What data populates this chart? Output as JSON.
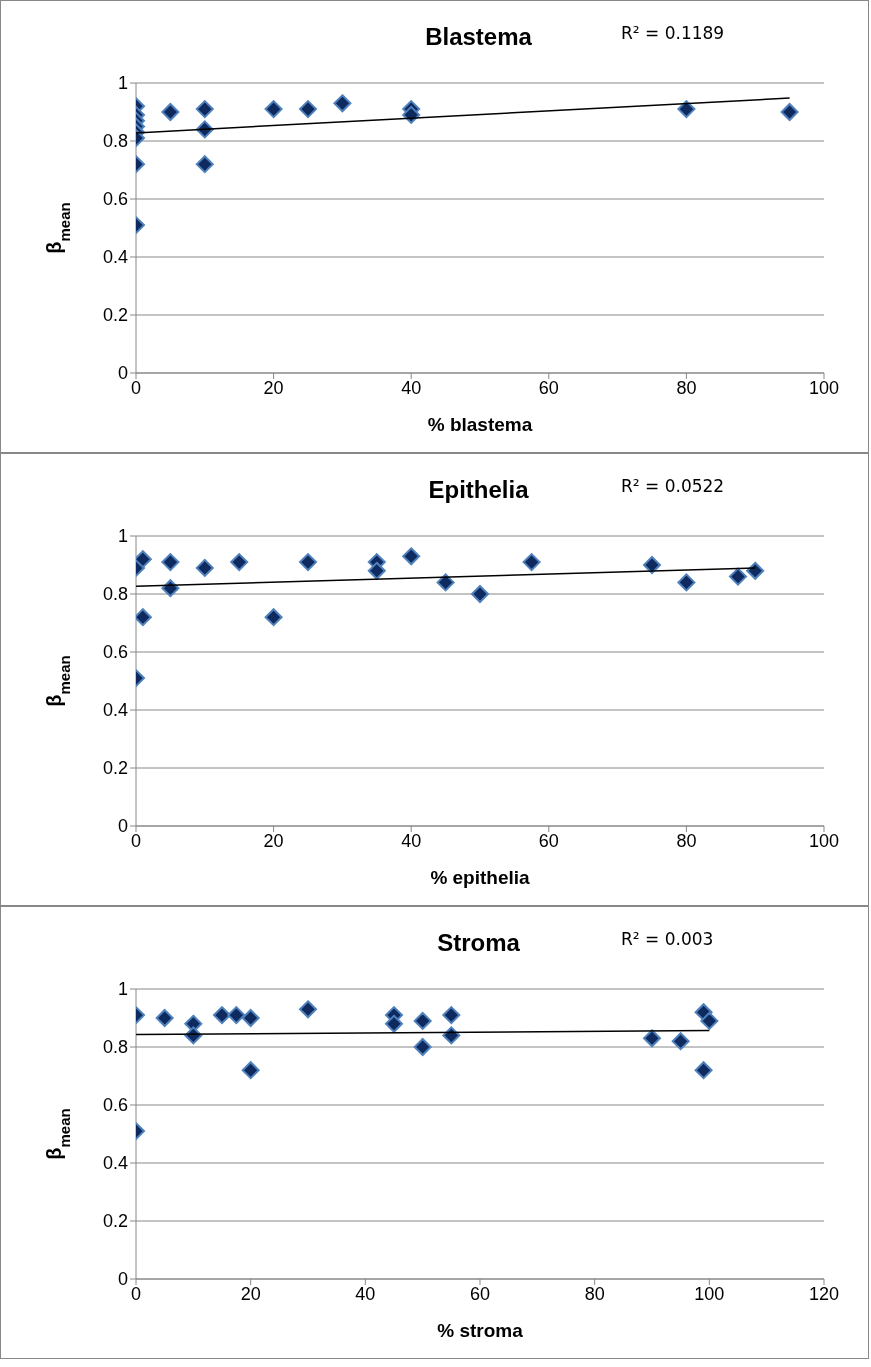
{
  "chart_data": [
    {
      "type": "scatter",
      "title": "Blastema",
      "xlabel": "% blastema",
      "ylabel": "β$_{mean}$",
      "annotations": [
        "R² = 0.1189"
      ],
      "xlim": [
        0,
        100
      ],
      "xticks": [
        0,
        20,
        40,
        60,
        80,
        100
      ],
      "ylim": [
        0,
        1
      ],
      "yticks": [
        0,
        0.2,
        0.4,
        0.6,
        0.8,
        1
      ],
      "grid": "y",
      "series": [
        {
          "type": "scatter",
          "marker": "diamond",
          "color": "#0f2a5e",
          "x": [
            0,
            0,
            0,
            0,
            0,
            0,
            0,
            0,
            5,
            10,
            10,
            10,
            20,
            25,
            30,
            40,
            40,
            80,
            95
          ],
          "values": [
            0.92,
            0.89,
            0.87,
            0.85,
            0.83,
            0.81,
            0.72,
            0.51,
            0.9,
            0.91,
            0.84,
            0.72,
            0.91,
            0.91,
            0.93,
            0.91,
            0.89,
            0.91,
            0.9
          ]
        },
        {
          "type": "line",
          "color": "#000000",
          "line_style": "solid",
          "x": [
            0,
            95
          ],
          "values": [
            0.828,
            0.948
          ]
        }
      ]
    },
    {
      "type": "scatter",
      "title": "Epithelia",
      "xlabel": "% epithelia",
      "ylabel": "β$_{mean}$",
      "annotations": [
        "R² = 0.0522"
      ],
      "xlim": [
        0,
        100
      ],
      "xticks": [
        0,
        20,
        40,
        60,
        80,
        100
      ],
      "ylim": [
        0,
        1
      ],
      "yticks": [
        0,
        0.2,
        0.4,
        0.6,
        0.8,
        1
      ],
      "grid": "y",
      "series": [
        {
          "type": "scatter",
          "marker": "diamond",
          "color": "#0f2a5e",
          "x": [
            0,
            0,
            1,
            1,
            5,
            5,
            10,
            15,
            20,
            25,
            35,
            35,
            40,
            45,
            50,
            57.5,
            75,
            80,
            87.5,
            90
          ],
          "values": [
            0.89,
            0.51,
            0.92,
            0.72,
            0.91,
            0.82,
            0.89,
            0.91,
            0.72,
            0.91,
            0.91,
            0.88,
            0.93,
            0.84,
            0.8,
            0.91,
            0.9,
            0.84,
            0.86,
            0.88
          ]
        },
        {
          "type": "line",
          "color": "#000000",
          "line_style": "solid",
          "x": [
            0,
            90
          ],
          "values": [
            0.827,
            0.89
          ]
        }
      ]
    },
    {
      "type": "scatter",
      "title": "Stroma",
      "xlabel": "% stroma",
      "ylabel": "β$_{mean}$",
      "annotations": [
        "R² = 0.003"
      ],
      "xlim": [
        0,
        120
      ],
      "xticks": [
        0,
        20,
        40,
        60,
        80,
        100,
        120
      ],
      "ylim": [
        0,
        1
      ],
      "yticks": [
        0,
        0.2,
        0.4,
        0.6,
        0.8,
        1
      ],
      "grid": "y",
      "series": [
        {
          "type": "scatter",
          "marker": "diamond",
          "color": "#0f2a5e",
          "x": [
            0,
            0,
            5,
            10,
            10,
            15,
            17.5,
            20,
            20,
            30,
            45,
            45,
            50,
            50,
            55,
            55,
            90,
            95,
            99,
            99,
            100
          ],
          "values": [
            0.91,
            0.51,
            0.9,
            0.88,
            0.84,
            0.91,
            0.91,
            0.9,
            0.72,
            0.93,
            0.91,
            0.88,
            0.89,
            0.8,
            0.91,
            0.84,
            0.83,
            0.82,
            0.92,
            0.72,
            0.89
          ]
        },
        {
          "type": "line",
          "color": "#000000",
          "line_style": "solid",
          "x": [
            0,
            100
          ],
          "values": [
            0.843,
            0.857
          ]
        }
      ]
    }
  ]
}
